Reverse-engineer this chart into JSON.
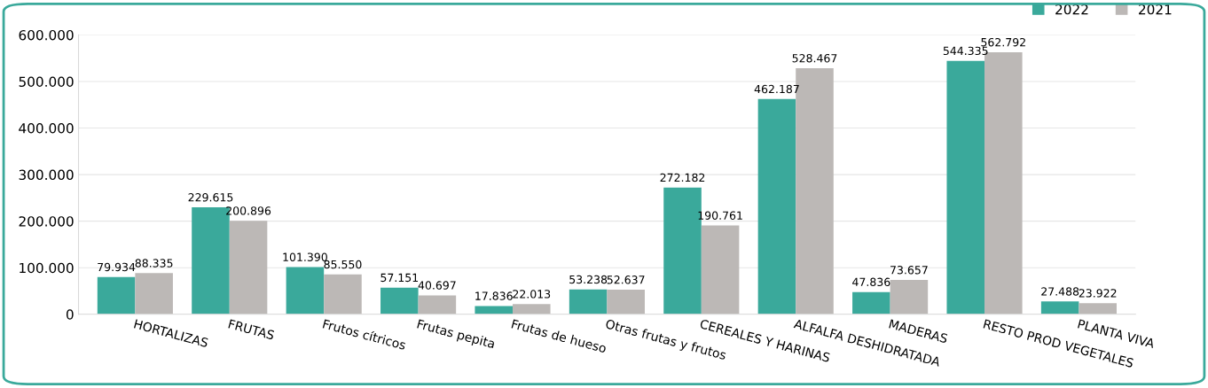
{
  "chart_data": {
    "type": "bar",
    "categories": [
      "HORTALIZAS",
      "FRUTAS",
      "Frutos cítricos",
      "Frutas pepita",
      "Frutas de hueso",
      "Otras frutas y frutos",
      "CEREALES Y HARINAS",
      "ALFALFA DESHIDRATADA",
      "MADERAS",
      "RESTO PROD VEGETALES",
      "PLANTA VIVA"
    ],
    "series": [
      {
        "name": "2022",
        "color": "#3aa99b",
        "values": [
          79934,
          229615,
          101390,
          57151,
          17836,
          53238,
          272182,
          462187,
          47836,
          544335,
          27488
        ],
        "value_labels": [
          "79.934",
          "229.615",
          "101.390",
          "57.151",
          "17.836",
          "53.238",
          "272.182",
          "462.187",
          "47.836",
          "544.335",
          "27.488"
        ]
      },
      {
        "name": "2021",
        "color": "#bcb8b6",
        "values": [
          88335,
          200896,
          85550,
          40697,
          22013,
          52637,
          190761,
          528467,
          73657,
          562792,
          23922
        ],
        "value_labels": [
          "88.335",
          "200.896",
          "85.550",
          "40.697",
          "22.013",
          "52.637",
          "190.761",
          "528.467",
          "73.657",
          "562.792",
          "23.922"
        ]
      }
    ],
    "ylim": [
      0,
      600000
    ],
    "yticks": [
      {
        "value": 0,
        "label": "0"
      },
      {
        "value": 100000,
        "label": "100.000"
      },
      {
        "value": 200000,
        "label": "200.000"
      },
      {
        "value": 300000,
        "label": "300.000"
      },
      {
        "value": 400000,
        "label": "400.000"
      },
      {
        "value": 500000,
        "label": "500.000"
      },
      {
        "value": 600000,
        "label": "600.000"
      }
    ],
    "grid": "y",
    "legend": "top right"
  }
}
